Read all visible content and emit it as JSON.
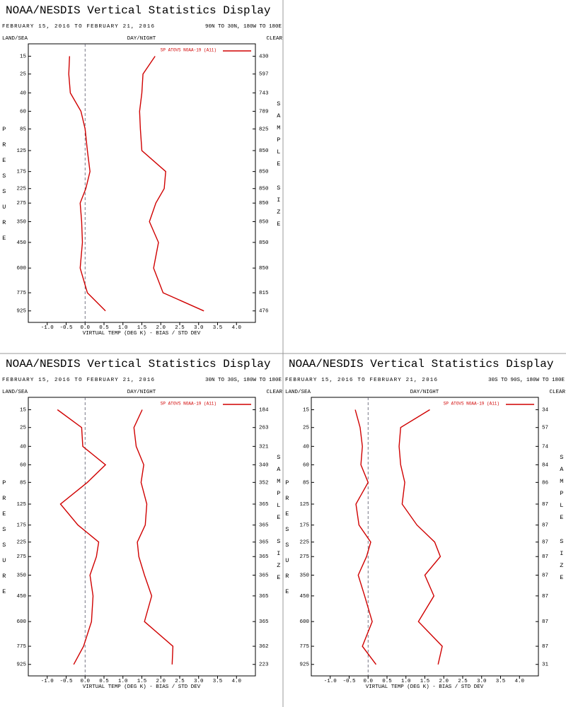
{
  "chart_data": [
    {
      "type": "line",
      "orientation": "vertical-profile",
      "title": "NOAA/NESDIS Vertical Statistics Display",
      "date_range": "FEBRUARY 15, 2016 TO FEBRUARY 21, 2016",
      "region": "90N TO 30N, 180W TO 180E",
      "header_left": "LAND/SEA",
      "header_center": "DAY/NIGHT",
      "header_right": "CLEAR",
      "ylabel": "PRESSURE",
      "y2label": "SAMPLE SIZE",
      "xlabel": "VIRTUAL TEMP (DEG K) - BIAS / STD DEV",
      "xlim": [
        -1.5,
        4.5
      ],
      "xticks": [
        {
          "value": -1,
          "label": "-1.0"
        },
        -0.5,
        {
          "value": 0,
          "label": "0.0"
        },
        0.5,
        {
          "value": 1,
          "label": "1.0"
        },
        1.5,
        {
          "value": 2,
          "label": "2.0"
        },
        2.5,
        {
          "value": 3,
          "label": "3.0"
        },
        3.5,
        {
          "value": 4,
          "label": "4.0"
        }
      ],
      "ylim": [
        10,
        1030
      ],
      "y_scale_exponent": 0.286,
      "y_inverted": true,
      "yticks": [
        15,
        25,
        40,
        60,
        85,
        125,
        175,
        225,
        275,
        350,
        450,
        600,
        775,
        925
      ],
      "sample_size": [
        430,
        597,
        743,
        789,
        825,
        850,
        850,
        850,
        850,
        850,
        850,
        850,
        815,
        476
      ],
      "zero_line": true,
      "series": [
        {
          "name": "SP ATOVS NOAA-19 (A11)",
          "color": "#d00000",
          "bias": [
            -0.41,
            -0.43,
            -0.39,
            -0.11,
            0.0,
            0.06,
            0.13,
            0.02,
            -0.13,
            -0.09,
            -0.07,
            -0.13,
            0.06,
            0.54
          ],
          "std_dev": [
            1.85,
            1.53,
            1.5,
            1.44,
            1.46,
            1.5,
            2.13,
            2.09,
            1.87,
            1.7,
            1.94,
            1.81,
            2.06,
            3.14
          ]
        }
      ]
    },
    {
      "type": "line",
      "orientation": "vertical-profile",
      "title": "NOAA/NESDIS Vertical Statistics Display",
      "date_range": "FEBRUARY 15, 2016 TO FEBRUARY 21, 2016",
      "region": "30N TO 30S, 180W TO 180E",
      "header_left": "LAND/SEA",
      "header_center": "DAY/NIGHT",
      "header_right": "CLEAR",
      "ylabel": "PRESSURE",
      "y2label": "SAMPLE SIZE",
      "xlabel": "VIRTUAL TEMP (DEG K) - BIAS / STD DEV",
      "xlim": [
        -1.5,
        4.5
      ],
      "xticks": [
        {
          "value": -1,
          "label": "-1.0"
        },
        -0.5,
        {
          "value": 0,
          "label": "0.0"
        },
        0.5,
        {
          "value": 1,
          "label": "1.0"
        },
        1.5,
        {
          "value": 2,
          "label": "2.0"
        },
        2.5,
        {
          "value": 3,
          "label": "3.0"
        },
        3.5,
        {
          "value": 4,
          "label": "4.0"
        }
      ],
      "ylim": [
        10,
        1030
      ],
      "y_scale_exponent": 0.286,
      "y_inverted": true,
      "yticks": [
        15,
        25,
        40,
        60,
        85,
        125,
        175,
        225,
        275,
        350,
        450,
        600,
        775,
        925
      ],
      "sample_size": [
        184,
        263,
        321,
        340,
        352,
        365,
        365,
        365,
        365,
        365,
        365,
        365,
        362,
        223
      ],
      "zero_line": true,
      "series": [
        {
          "name": "SP ATOVS NOAA-19 (A11)",
          "color": "#d00000",
          "bias": [
            -0.73,
            -0.09,
            -0.06,
            0.54,
            0.06,
            -0.65,
            -0.19,
            0.36,
            0.3,
            0.13,
            0.21,
            0.17,
            -0.04,
            -0.3
          ],
          "std_dev": [
            1.51,
            1.29,
            1.35,
            1.55,
            1.48,
            1.63,
            1.59,
            1.38,
            1.42,
            1.57,
            1.76,
            1.57,
            2.32,
            2.3
          ]
        }
      ]
    },
    {
      "type": "line",
      "orientation": "vertical-profile",
      "title": "NOAA/NESDIS Vertical Statistics Display",
      "date_range": "FEBRUARY 15, 2016 TO FEBRUARY 21, 2016",
      "region": "30S TO 90S, 180W TO 180E",
      "header_left": "LAND/SEA",
      "header_center": "DAY/NIGHT",
      "header_right": "CLEAR",
      "ylabel": "PRESSURE",
      "y2label": "SAMPLE SIZE",
      "xlabel": "VIRTUAL TEMP (DEG K) - BIAS / STD DEV",
      "xlim": [
        -1.5,
        4.5
      ],
      "xticks": [
        {
          "value": -1,
          "label": "-1.0"
        },
        -0.5,
        {
          "value": 0,
          "label": "0.0"
        },
        0.5,
        {
          "value": 1,
          "label": "1.0"
        },
        1.5,
        {
          "value": 2,
          "label": "2.0"
        },
        2.5,
        {
          "value": 3,
          "label": "3.0"
        },
        3.5,
        {
          "value": 4,
          "label": "4.0"
        }
      ],
      "ylim": [
        10,
        1030
      ],
      "y_scale_exponent": 0.286,
      "y_inverted": true,
      "yticks": [
        15,
        25,
        40,
        60,
        85,
        125,
        175,
        225,
        275,
        350,
        450,
        600,
        775,
        925
      ],
      "sample_size": [
        34,
        57,
        74,
        84,
        86,
        87,
        87,
        87,
        87,
        87,
        87,
        87,
        87,
        31
      ],
      "zero_line": true,
      "series": [
        {
          "name": "SP ATOVS NOAA-19 (A11)",
          "color": "#d00000",
          "bias": [
            -0.34,
            -0.21,
            -0.15,
            -0.19,
            0.0,
            -0.32,
            -0.24,
            0.07,
            -0.04,
            -0.26,
            -0.09,
            0.11,
            -0.15,
            0.21
          ],
          "std_dev": [
            1.63,
            0.86,
            0.82,
            0.86,
            0.97,
            0.9,
            1.29,
            1.76,
            1.91,
            1.5,
            1.74,
            1.33,
            1.96,
            1.85
          ]
        }
      ]
    }
  ]
}
